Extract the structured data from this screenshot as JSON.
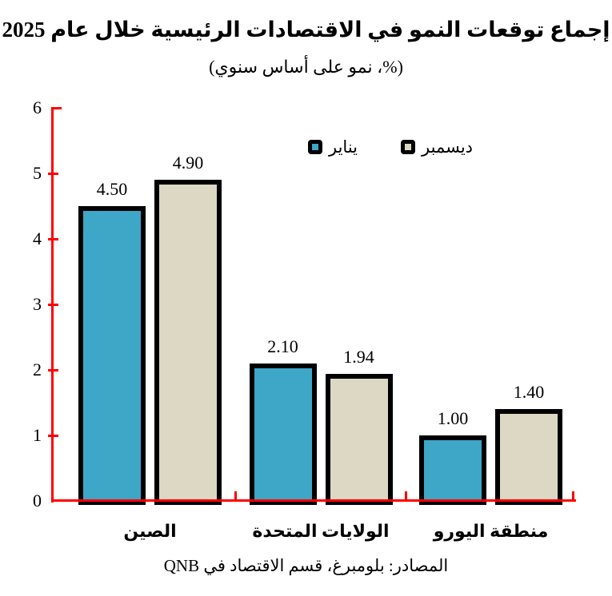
{
  "title": "إجماع توقعات النمو في الاقتصادات الرئيسية خلال عام 2025",
  "subtitle": "(%، نمو على أساس سنوي)",
  "source": "المصادر: بلومبرغ، قسم الاقتصاد في QNB",
  "chart_data": {
    "type": "bar",
    "title": "إجماع توقعات النمو في الاقتصادات الرئيسية خلال عام 2025",
    "subtitle": "(%، نمو على أساس سنوي)",
    "categories": [
      "الصين",
      "الولايات المتحدة",
      "منطقة اليورو"
    ],
    "series": [
      {
        "name": "يناير",
        "color": "#3EA6C7",
        "values": [
          4.5,
          2.1,
          1.0
        ],
        "labels": [
          "4.50",
          "2.10",
          "1.00"
        ]
      },
      {
        "name": "ديسمبر",
        "color": "#DCD8C3",
        "values": [
          4.9,
          1.94,
          1.4
        ],
        "labels": [
          "4.90",
          "1.94",
          "1.40"
        ]
      }
    ],
    "ylim": [
      0,
      6
    ],
    "yticks": [
      0,
      1,
      2,
      3,
      4,
      5,
      6
    ],
    "grid": false,
    "legend_position": "top-center",
    "axis_color": "#FF0000",
    "bar_border_color": "#000000",
    "text_color": "#000000",
    "source": "المصادر: بلومبرغ، قسم الاقتصاد في QNB"
  }
}
